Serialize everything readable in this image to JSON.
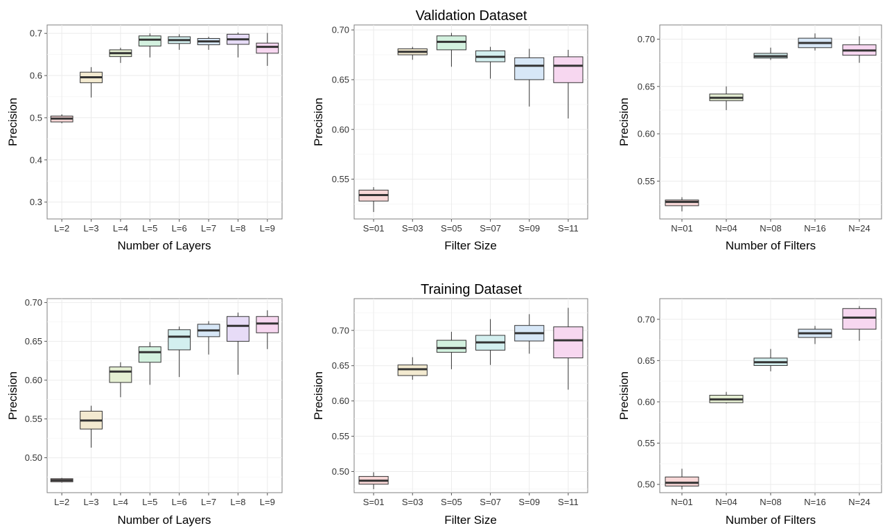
{
  "figure": {
    "section_titles": [
      "Validation Dataset",
      "Training Dataset"
    ]
  },
  "chart_data": [
    {
      "type": "box",
      "title": "",
      "xlabel": "Number of Layers",
      "ylabel": "Precision",
      "ylim": [
        0.26,
        0.72
      ],
      "yticks": [
        0.3,
        0.4,
        0.5,
        0.6,
        0.7
      ],
      "ytick_labels": [
        "0.3",
        "0.4",
        "0.5",
        "0.6",
        "0.7"
      ],
      "grid": true,
      "categories": [
        "L=2",
        "L=3",
        "L=4",
        "L=5",
        "L=6",
        "L=7",
        "L=8",
        "L=9"
      ],
      "colors": [
        "#f8d7d7",
        "#f3ead0",
        "#e5efd3",
        "#d3f1df",
        "#d3efef",
        "#d7e7f7",
        "#e7dcf7",
        "#f7d7f0"
      ],
      "boxes": [
        {
          "min": 0.487,
          "q1": 0.49,
          "median": 0.498,
          "q3": 0.504,
          "max": 0.508
        },
        {
          "min": 0.548,
          "q1": 0.583,
          "median": 0.596,
          "q3": 0.608,
          "max": 0.62
        },
        {
          "min": 0.63,
          "q1": 0.645,
          "median": 0.653,
          "q3": 0.661,
          "max": 0.666
        },
        {
          "min": 0.643,
          "q1": 0.67,
          "median": 0.685,
          "q3": 0.694,
          "max": 0.7
        },
        {
          "min": 0.661,
          "q1": 0.676,
          "median": 0.684,
          "q3": 0.692,
          "max": 0.698
        },
        {
          "min": 0.661,
          "q1": 0.673,
          "median": 0.681,
          "q3": 0.688,
          "max": 0.692
        },
        {
          "min": 0.643,
          "q1": 0.674,
          "median": 0.686,
          "q3": 0.698,
          "max": 0.702
        },
        {
          "min": 0.623,
          "q1": 0.653,
          "median": 0.668,
          "q3": 0.677,
          "max": 0.701
        }
      ]
    },
    {
      "type": "box",
      "title": "",
      "xlabel": "Filter Size",
      "ylabel": "Precision",
      "ylim": [
        0.51,
        0.705
      ],
      "yticks": [
        0.55,
        0.6,
        0.65,
        0.7
      ],
      "ytick_labels": [
        "0.55",
        "0.60",
        "0.65",
        "0.70"
      ],
      "grid": true,
      "categories": [
        "S=01",
        "S=03",
        "S=05",
        "S=07",
        "S=09",
        "S=11"
      ],
      "colors": [
        "#f8d7d7",
        "#f3ead0",
        "#d3f1df",
        "#d3efef",
        "#d7e7f7",
        "#f7d7f0"
      ],
      "boxes": [
        {
          "min": 0.517,
          "q1": 0.528,
          "median": 0.534,
          "q3": 0.539,
          "max": 0.542
        },
        {
          "min": 0.67,
          "q1": 0.675,
          "median": 0.678,
          "q3": 0.681,
          "max": 0.683
        },
        {
          "min": 0.663,
          "q1": 0.68,
          "median": 0.688,
          "q3": 0.694,
          "max": 0.697
        },
        {
          "min": 0.651,
          "q1": 0.668,
          "median": 0.673,
          "q3": 0.679,
          "max": 0.683
        },
        {
          "min": 0.623,
          "q1": 0.65,
          "median": 0.664,
          "q3": 0.672,
          "max": 0.681
        },
        {
          "min": 0.611,
          "q1": 0.647,
          "median": 0.664,
          "q3": 0.673,
          "max": 0.68
        }
      ]
    },
    {
      "type": "box",
      "title": "",
      "xlabel": "Number of Filters",
      "ylabel": "Precision",
      "ylim": [
        0.51,
        0.715
      ],
      "yticks": [
        0.55,
        0.6,
        0.65,
        0.7
      ],
      "ytick_labels": [
        "0.55",
        "0.60",
        "0.65",
        "0.70"
      ],
      "grid": true,
      "categories": [
        "N=01",
        "N=04",
        "N=08",
        "N=16",
        "N=24"
      ],
      "colors": [
        "#f8d7d7",
        "#e5efd3",
        "#d3efef",
        "#d7e7f7",
        "#f7d7f0"
      ],
      "boxes": [
        {
          "min": 0.518,
          "q1": 0.524,
          "median": 0.528,
          "q3": 0.53,
          "max": 0.533
        },
        {
          "min": 0.625,
          "q1": 0.635,
          "median": 0.638,
          "q3": 0.642,
          "max": 0.65
        },
        {
          "min": 0.678,
          "q1": 0.68,
          "median": 0.682,
          "q3": 0.685,
          "max": 0.691
        },
        {
          "min": 0.688,
          "q1": 0.691,
          "median": 0.696,
          "q3": 0.701,
          "max": 0.706
        },
        {
          "min": 0.675,
          "q1": 0.683,
          "median": 0.688,
          "q3": 0.694,
          "max": 0.703
        }
      ]
    },
    {
      "type": "box",
      "title": "",
      "xlabel": "Number of Layers",
      "ylabel": "Precision",
      "ylim": [
        0.455,
        0.705
      ],
      "yticks": [
        0.5,
        0.55,
        0.6,
        0.65,
        0.7
      ],
      "ytick_labels": [
        "0.50",
        "0.55",
        "0.60",
        "0.65",
        "0.70"
      ],
      "grid": true,
      "categories": [
        "L=2",
        "L=3",
        "L=4",
        "L=5",
        "L=6",
        "L=7",
        "L=8",
        "L=9"
      ],
      "colors": [
        "#f8d7d7",
        "#f3ead0",
        "#e5efd3",
        "#d3f1df",
        "#d3efef",
        "#d7e7f7",
        "#e7dcf7",
        "#f7d7f0"
      ],
      "boxes": [
        {
          "min": 0.468,
          "q1": 0.469,
          "median": 0.471,
          "q3": 0.473,
          "max": 0.474
        },
        {
          "min": 0.513,
          "q1": 0.537,
          "median": 0.548,
          "q3": 0.56,
          "max": 0.567
        },
        {
          "min": 0.578,
          "q1": 0.597,
          "median": 0.611,
          "q3": 0.617,
          "max": 0.623
        },
        {
          "min": 0.594,
          "q1": 0.623,
          "median": 0.636,
          "q3": 0.643,
          "max": 0.649
        },
        {
          "min": 0.604,
          "q1": 0.639,
          "median": 0.656,
          "q3": 0.665,
          "max": 0.669
        },
        {
          "min": 0.633,
          "q1": 0.656,
          "median": 0.664,
          "q3": 0.672,
          "max": 0.676
        },
        {
          "min": 0.607,
          "q1": 0.65,
          "median": 0.67,
          "q3": 0.682,
          "max": 0.687
        },
        {
          "min": 0.64,
          "q1": 0.661,
          "median": 0.673,
          "q3": 0.682,
          "max": 0.69
        }
      ]
    },
    {
      "type": "box",
      "title": "",
      "xlabel": "Filter Size",
      "ylabel": "Precision",
      "ylim": [
        0.47,
        0.745
      ],
      "yticks": [
        0.5,
        0.55,
        0.6,
        0.65,
        0.7
      ],
      "ytick_labels": [
        "0.50",
        "0.55",
        "0.60",
        "0.65",
        "0.70"
      ],
      "grid": true,
      "categories": [
        "S=01",
        "S=03",
        "S=05",
        "S=07",
        "S=09",
        "S=11"
      ],
      "colors": [
        "#f8d7d7",
        "#f3ead0",
        "#d3f1df",
        "#d3efef",
        "#d7e7f7",
        "#f7d7f0"
      ],
      "boxes": [
        {
          "min": 0.475,
          "q1": 0.482,
          "median": 0.487,
          "q3": 0.493,
          "max": 0.499
        },
        {
          "min": 0.63,
          "q1": 0.636,
          "median": 0.645,
          "q3": 0.651,
          "max": 0.662
        },
        {
          "min": 0.645,
          "q1": 0.669,
          "median": 0.675,
          "q3": 0.686,
          "max": 0.698
        },
        {
          "min": 0.651,
          "q1": 0.672,
          "median": 0.683,
          "q3": 0.693,
          "max": 0.716
        },
        {
          "min": 0.667,
          "q1": 0.685,
          "median": 0.696,
          "q3": 0.707,
          "max": 0.723
        },
        {
          "min": 0.616,
          "q1": 0.661,
          "median": 0.686,
          "q3": 0.705,
          "max": 0.732
        }
      ]
    },
    {
      "type": "box",
      "title": "",
      "xlabel": "Number of Filters",
      "ylabel": "Precision",
      "ylim": [
        0.49,
        0.725
      ],
      "yticks": [
        0.5,
        0.55,
        0.6,
        0.65,
        0.7
      ],
      "ytick_labels": [
        "0.50",
        "0.55",
        "0.60",
        "0.65",
        "0.70"
      ],
      "grid": true,
      "categories": [
        "N=01",
        "N=04",
        "N=08",
        "N=16",
        "N=24"
      ],
      "colors": [
        "#f8d7d7",
        "#e5efd3",
        "#d3efef",
        "#d7e7f7",
        "#f7d7f0"
      ],
      "boxes": [
        {
          "min": 0.494,
          "q1": 0.498,
          "median": 0.502,
          "q3": 0.509,
          "max": 0.519
        },
        {
          "min": 0.598,
          "q1": 0.599,
          "median": 0.603,
          "q3": 0.608,
          "max": 0.612
        },
        {
          "min": 0.637,
          "q1": 0.644,
          "median": 0.648,
          "q3": 0.653,
          "max": 0.664
        },
        {
          "min": 0.67,
          "q1": 0.678,
          "median": 0.683,
          "q3": 0.688,
          "max": 0.692
        },
        {
          "min": 0.674,
          "q1": 0.688,
          "median": 0.702,
          "q3": 0.713,
          "max": 0.716
        }
      ]
    }
  ]
}
